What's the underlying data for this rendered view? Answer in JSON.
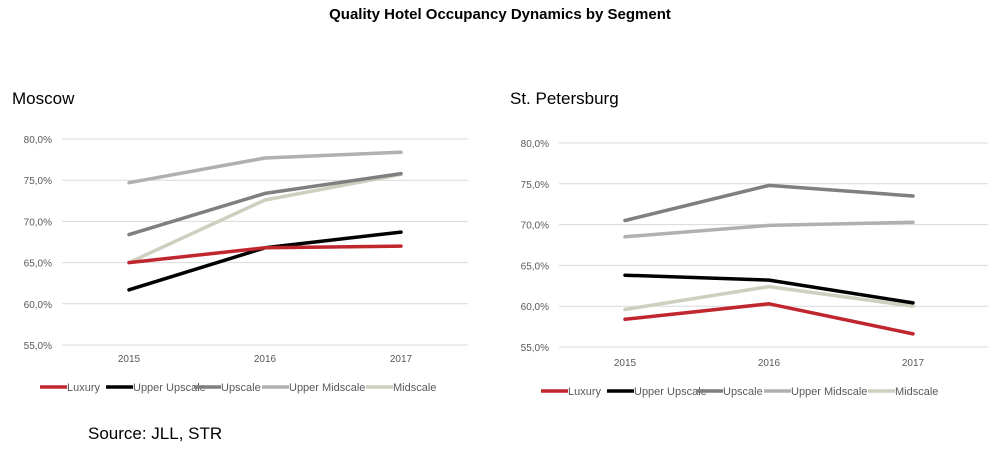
{
  "title": "Quality Hotel Occupancy Dynamics by Segment",
  "source": "Source: JLL, STR",
  "colors": {
    "Luxury": "#c0262d",
    "Upper Upscale": "#000000",
    "Upscale": "#7f7f7f",
    "Upper Midscale": "#b0b0b0",
    "Midscale": "#cfcfc0"
  },
  "chart_data": [
    {
      "type": "line",
      "title": "Moscow",
      "categories": [
        "2015",
        "2016",
        "2017"
      ],
      "ylim": [
        55,
        80
      ],
      "yticks": [
        "55,0%",
        "60,0%",
        "65,0%",
        "70,0%",
        "75,0%",
        "80,0%"
      ],
      "grid": true,
      "legend": "bottom",
      "series": [
        {
          "name": "Luxury",
          "values": [
            65.0,
            66.8,
            67.0
          ]
        },
        {
          "name": "Upper Upscale",
          "values": [
            61.7,
            66.8,
            68.7
          ]
        },
        {
          "name": "Upscale",
          "values": [
            68.4,
            73.4,
            75.8
          ]
        },
        {
          "name": "Upper Midscale",
          "values": [
            74.7,
            77.7,
            78.4
          ]
        },
        {
          "name": "Midscale",
          "values": [
            65.0,
            72.6,
            75.7
          ]
        }
      ]
    },
    {
      "type": "line",
      "title": "St. Petersburg",
      "categories": [
        "2015",
        "2016",
        "2017"
      ],
      "ylim": [
        55,
        80
      ],
      "yticks": [
        "55,0%",
        "60,0%",
        "65,0%",
        "70,0%",
        "75,0%",
        "80,0%"
      ],
      "grid": true,
      "legend": "bottom",
      "series": [
        {
          "name": "Luxury",
          "values": [
            58.4,
            60.3,
            56.6
          ]
        },
        {
          "name": "Upper Upscale",
          "values": [
            63.8,
            63.2,
            60.4
          ]
        },
        {
          "name": "Upscale",
          "values": [
            70.5,
            74.8,
            73.5
          ]
        },
        {
          "name": "Upper Midscale",
          "values": [
            68.5,
            69.9,
            70.3
          ]
        },
        {
          "name": "Midscale",
          "values": [
            59.6,
            62.4,
            60.0
          ]
        }
      ]
    }
  ]
}
